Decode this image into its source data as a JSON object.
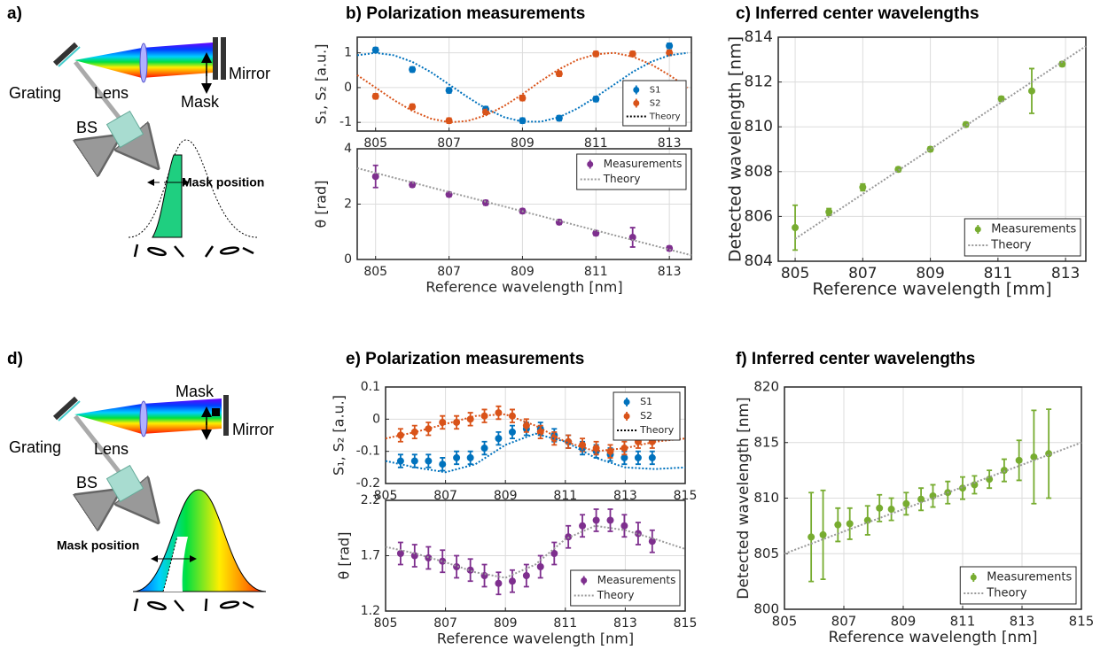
{
  "diagrams": [
    {
      "label": "a)",
      "grating": "Grating",
      "lens": "Lens",
      "mirror": "Mirror",
      "mask": "Mask",
      "bs": "BS",
      "mask_position": "Mask position"
    },
    {
      "label": "d)",
      "grating": "Grating",
      "lens": "Lens",
      "mirror": "Mirror",
      "mask": "Mask",
      "bs": "BS",
      "mask_position": "Mask position"
    }
  ],
  "chart_data": [
    {
      "type": "scatter",
      "title": "b) Polarization measurements",
      "xlabel": "Reference wavelength [mm]",
      "ylabel": "S₁, S₂ [a.u.]",
      "xlim": [
        804.5,
        813.6
      ],
      "ylim": [
        -1.25,
        1.45
      ],
      "xticks": [
        805,
        807,
        809,
        811,
        813
      ],
      "yticks": [
        -1,
        0,
        1
      ],
      "grid": true,
      "legend": "lower right",
      "series": [
        {
          "name": "S1",
          "color": "#0072bd",
          "style": "errorbar",
          "x": [
            805,
            806,
            807,
            808,
            809,
            810,
            811,
            813
          ],
          "values": [
            1.08,
            0.52,
            -0.08,
            -0.62,
            -0.95,
            -0.88,
            -0.33,
            1.2
          ],
          "errors": [
            0.07,
            0.07,
            0.07,
            0.07,
            0.07,
            0.07,
            0.07,
            0.07
          ]
        },
        {
          "name": "S2",
          "color": "#d95319",
          "style": "errorbar",
          "x": [
            805,
            806,
            807,
            808,
            809,
            810,
            811,
            812,
            813
          ],
          "values": [
            -0.25,
            -0.55,
            -0.95,
            -0.7,
            -0.3,
            0.4,
            0.97,
            0.97,
            1.0
          ],
          "errors": [
            0.07,
            0.07,
            0.07,
            0.07,
            0.07,
            0.07,
            0.07,
            0.07,
            0.07
          ]
        },
        {
          "color": "#0072bd",
          "style": "dotted",
          "x": [
            804.5,
            805,
            805.5,
            806,
            806.5,
            807,
            807.5,
            808,
            808.5,
            809,
            809.5,
            810,
            810.5,
            811,
            811.5,
            812,
            812.5,
            813,
            813.5
          ],
          "values": [
            0.93,
            1,
            0.93,
            0.74,
            0.45,
            0.09,
            -0.27,
            -0.6,
            -0.85,
            -0.98,
            -0.98,
            -0.85,
            -0.6,
            -0.27,
            0.09,
            0.45,
            0.74,
            0.93,
            1.0
          ]
        },
        {
          "color": "#d95319",
          "style": "dotted",
          "x": [
            804.5,
            805,
            805.5,
            806,
            806.5,
            807,
            807.5,
            808,
            808.5,
            809,
            809.5,
            810,
            810.5,
            811,
            811.5,
            812,
            812.5,
            813,
            813.5
          ],
          "values": [
            0.36,
            0,
            -0.36,
            -0.67,
            -0.89,
            -1.0,
            -0.96,
            -0.8,
            -0.53,
            -0.19,
            0.19,
            0.53,
            0.8,
            0.96,
            1.0,
            0.89,
            0.67,
            0.36,
            0.0
          ]
        }
      ],
      "theory_legend": {
        "name": "Theory",
        "color": "#000000"
      }
    },
    {
      "type": "scatter",
      "xlabel": "Reference wavelength [nm]",
      "ylabel": "θ [rad]",
      "xlim": [
        804.5,
        813.6
      ],
      "ylim": [
        0,
        4
      ],
      "xticks": [
        805,
        807,
        809,
        811,
        813
      ],
      "yticks": [
        0,
        2,
        4
      ],
      "grid": true,
      "legend": "upper right",
      "series": [
        {
          "name": "Measurements",
          "color": "#7e2f8e",
          "style": "errorbar",
          "x": [
            805,
            806,
            807,
            808,
            809,
            810,
            811,
            812,
            813
          ],
          "values": [
            3.0,
            2.7,
            2.35,
            2.05,
            1.75,
            1.35,
            0.95,
            0.8,
            0.4
          ],
          "errors": [
            0.4,
            0.08,
            0.08,
            0.08,
            0.08,
            0.08,
            0.08,
            0.35,
            0.08
          ]
        },
        {
          "name": "Theory",
          "color": "#999999",
          "style": "dotted",
          "x": [
            804.5,
            813.6
          ],
          "values": [
            3.3,
            0.15
          ]
        }
      ]
    },
    {
      "type": "scatter",
      "title": "c) Inferred center wavelengths",
      "xlabel": "Reference wavelength [mm]",
      "ylabel": "Detected wavelength [nm]",
      "xlim": [
        804.5,
        813.6
      ],
      "ylim": [
        804,
        814
      ],
      "xticks": [
        805,
        807,
        809,
        811,
        813
      ],
      "yticks": [
        804,
        806,
        808,
        810,
        812,
        814
      ],
      "grid": true,
      "legend": "lower right",
      "series": [
        {
          "name": "Measurements",
          "color": "#77ac30",
          "style": "errorbar",
          "x": [
            805,
            806,
            807,
            808.05,
            809,
            810.05,
            811.1,
            812,
            812.9
          ],
          "values": [
            805.5,
            806.2,
            807.3,
            808.1,
            809.0,
            810.1,
            811.25,
            811.6,
            812.8
          ],
          "errors": [
            1.0,
            0.15,
            0.15,
            0.1,
            0.1,
            0.1,
            0.1,
            1.0,
            0.1
          ]
        },
        {
          "name": "Theory",
          "color": "#999999",
          "style": "dotted",
          "x": [
            805,
            813.6
          ],
          "values": [
            805,
            813.6
          ]
        }
      ]
    },
    {
      "type": "scatter",
      "title": "e) Polarization measurements",
      "xlabel": "Reference wavelength [nm]",
      "ylabel": "S₁, S₂ [a.u.]",
      "xlim": [
        805,
        815
      ],
      "ylim": [
        -0.2,
        0.1
      ],
      "xticks": [
        805,
        807,
        809,
        811,
        813,
        815
      ],
      "yticks": [
        -0.2,
        -0.1,
        0,
        0.1
      ],
      "grid": true,
      "legend": "upper right",
      "series": [
        {
          "name": "S1",
          "color": "#0072bd",
          "style": "errorbar",
          "x": [
            805.5,
            805.97,
            806.43,
            806.9,
            807.37,
            807.83,
            808.3,
            808.77,
            809.23,
            809.7,
            810.17,
            810.63,
            811.1,
            811.57,
            812.03,
            812.5,
            812.97,
            813.43,
            813.9
          ],
          "values": [
            -0.13,
            -0.13,
            -0.13,
            -0.14,
            -0.12,
            -0.12,
            -0.09,
            -0.06,
            -0.04,
            -0.03,
            -0.03,
            -0.05,
            -0.07,
            -0.09,
            -0.1,
            -0.11,
            -0.12,
            -0.12,
            -0.12
          ],
          "errors": [
            0.02,
            0.02,
            0.02,
            0.02,
            0.02,
            0.02,
            0.02,
            0.02,
            0.02,
            0.02,
            0.02,
            0.02,
            0.02,
            0.02,
            0.02,
            0.02,
            0.02,
            0.02,
            0.02
          ]
        },
        {
          "name": "S2",
          "color": "#d95319",
          "style": "errorbar",
          "x": [
            805.5,
            805.97,
            806.43,
            806.9,
            807.37,
            807.83,
            808.3,
            808.77,
            809.23,
            809.7,
            810.17,
            810.63,
            811.1,
            811.57,
            812.03,
            812.5,
            812.97,
            813.43,
            813.9
          ],
          "values": [
            -0.05,
            -0.04,
            -0.03,
            -0.01,
            -0.01,
            0.0,
            0.01,
            0.02,
            0.01,
            -0.02,
            -0.04,
            -0.06,
            -0.07,
            -0.08,
            -0.09,
            -0.1,
            -0.09,
            -0.07,
            -0.07
          ],
          "errors": [
            0.02,
            0.02,
            0.02,
            0.02,
            0.02,
            0.02,
            0.02,
            0.02,
            0.02,
            0.02,
            0.02,
            0.02,
            0.02,
            0.02,
            0.02,
            0.02,
            0.02,
            0.02,
            0.02
          ]
        },
        {
          "color": "#0072bd",
          "style": "dotted",
          "x": [
            805,
            806,
            807,
            808,
            809,
            810,
            811,
            812,
            813,
            814,
            815
          ],
          "values": [
            -0.13,
            -0.15,
            -0.165,
            -0.14,
            -0.08,
            -0.045,
            -0.07,
            -0.12,
            -0.15,
            -0.155,
            -0.15
          ]
        },
        {
          "color": "#d95319",
          "style": "dotted",
          "x": [
            805,
            806,
            807,
            808,
            809,
            810,
            811,
            812,
            813,
            814,
            815
          ],
          "values": [
            -0.06,
            -0.04,
            -0.015,
            0.01,
            0.015,
            -0.02,
            -0.07,
            -0.1,
            -0.09,
            -0.07,
            -0.06
          ]
        }
      ],
      "theory_legend": {
        "name": "Theory",
        "color": "#000000"
      }
    },
    {
      "type": "scatter",
      "xlabel": "Reference wavelength [nm]",
      "ylabel": "θ [rad]",
      "xlim": [
        805,
        815
      ],
      "ylim": [
        1.2,
        2.2
      ],
      "xticks": [
        805,
        807,
        809,
        811,
        813,
        815
      ],
      "yticks": [
        1.2,
        1.7,
        2.2
      ],
      "grid": true,
      "legend": "lower right",
      "series": [
        {
          "name": "Measurements",
          "color": "#7e2f8e",
          "style": "errorbar",
          "x": [
            805.5,
            805.97,
            806.43,
            806.9,
            807.37,
            807.83,
            808.3,
            808.77,
            809.23,
            809.7,
            810.17,
            810.63,
            811.1,
            811.57,
            812.03,
            812.5,
            812.97,
            813.43,
            813.9
          ],
          "values": [
            1.72,
            1.7,
            1.68,
            1.65,
            1.6,
            1.57,
            1.52,
            1.45,
            1.47,
            1.52,
            1.6,
            1.72,
            1.87,
            1.97,
            2.02,
            2.02,
            1.97,
            1.9,
            1.83
          ],
          "errors": [
            0.1,
            0.1,
            0.1,
            0.1,
            0.1,
            0.1,
            0.1,
            0.1,
            0.1,
            0.1,
            0.1,
            0.1,
            0.1,
            0.1,
            0.1,
            0.1,
            0.1,
            0.1,
            0.1
          ]
        },
        {
          "name": "Theory",
          "color": "#999999",
          "style": "dotted",
          "x": [
            805,
            806,
            807,
            808,
            809,
            810,
            811,
            812,
            813,
            814,
            815
          ],
          "values": [
            1.78,
            1.72,
            1.64,
            1.55,
            1.5,
            1.62,
            1.85,
            1.97,
            1.93,
            1.85,
            1.76
          ]
        }
      ]
    },
    {
      "type": "scatter",
      "title": "f) Inferred center wavelengths",
      "xlabel": "Reference wavelength [nm]",
      "ylabel": "Detected wavelength [nm]",
      "xlim": [
        805,
        815
      ],
      "ylim": [
        800,
        820
      ],
      "xticks": [
        805,
        807,
        809,
        811,
        813,
        815
      ],
      "yticks": [
        800,
        805,
        810,
        815,
        820
      ],
      "grid": true,
      "legend": "lower right",
      "series": [
        {
          "name": "Measurements",
          "color": "#77ac30",
          "style": "errorbar",
          "x": [
            805.9,
            806.3,
            806.8,
            807.2,
            807.8,
            808.2,
            808.6,
            809.1,
            809.6,
            810.0,
            810.5,
            811.0,
            811.4,
            811.9,
            812.4,
            812.9,
            813.4,
            813.9
          ],
          "values": [
            806.5,
            806.7,
            807.6,
            807.7,
            808.0,
            809.1,
            809.0,
            809.5,
            809.9,
            810.2,
            810.5,
            810.9,
            811.2,
            811.7,
            812.5,
            813.4,
            813.7,
            814.0
          ],
          "errors": [
            4,
            4,
            1.5,
            1.4,
            1.3,
            1.2,
            1,
            1,
            1,
            1,
            1,
            1,
            0.8,
            0.8,
            1,
            1.8,
            4.2,
            4
          ]
        },
        {
          "name": "Theory",
          "color": "#999999",
          "style": "dotted",
          "x": [
            805,
            815
          ],
          "values": [
            805,
            815
          ]
        }
      ]
    }
  ]
}
